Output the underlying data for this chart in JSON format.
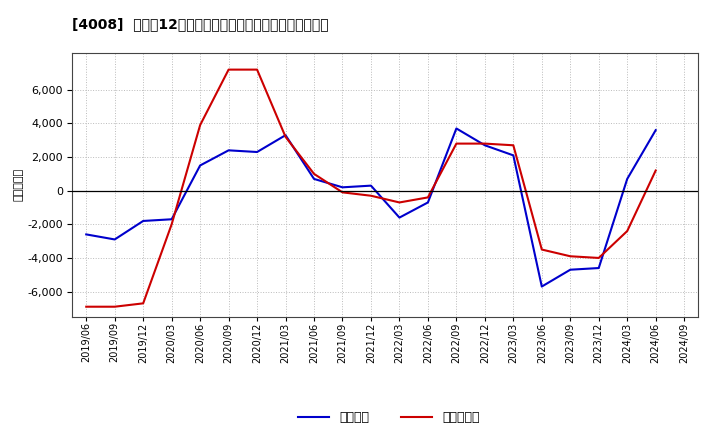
{
  "title": "[4008]  利益だ12か月移動合計の対前年同期増減額の推移",
  "ylabel": "（百万円）",
  "legend_labels": [
    "経常利益",
    "当期純利益"
  ],
  "x_labels": [
    "2019/06",
    "2019/09",
    "2019/12",
    "2020/03",
    "2020/06",
    "2020/09",
    "2020/12",
    "2021/03",
    "2021/06",
    "2021/09",
    "2021/12",
    "2022/03",
    "2022/06",
    "2022/09",
    "2022/12",
    "2023/03",
    "2023/06",
    "2023/09",
    "2023/12",
    "2024/03",
    "2024/06",
    "2024/09"
  ],
  "operating_profit": [
    -2600,
    -2900,
    -1800,
    -1700,
    1500,
    2400,
    2300,
    3300,
    700,
    200,
    300,
    -1600,
    -700,
    3700,
    2700,
    2100,
    -5700,
    -4700,
    -4600,
    700,
    3600,
    null
  ],
  "net_profit": [
    -6900,
    -6900,
    -6700,
    -2000,
    3900,
    7200,
    7200,
    3200,
    1000,
    -100,
    -300,
    -700,
    -400,
    2800,
    2800,
    2700,
    -3500,
    -3900,
    -4000,
    -2400,
    1200,
    null
  ],
  "line_color_operating": "#0000cc",
  "line_color_net": "#cc0000",
  "background_color": "#ffffff",
  "grid_color": "#bbbbbb",
  "ylim": [
    -7500,
    8200
  ],
  "yticks": [
    -6000,
    -4000,
    -2000,
    0,
    2000,
    4000,
    6000
  ]
}
